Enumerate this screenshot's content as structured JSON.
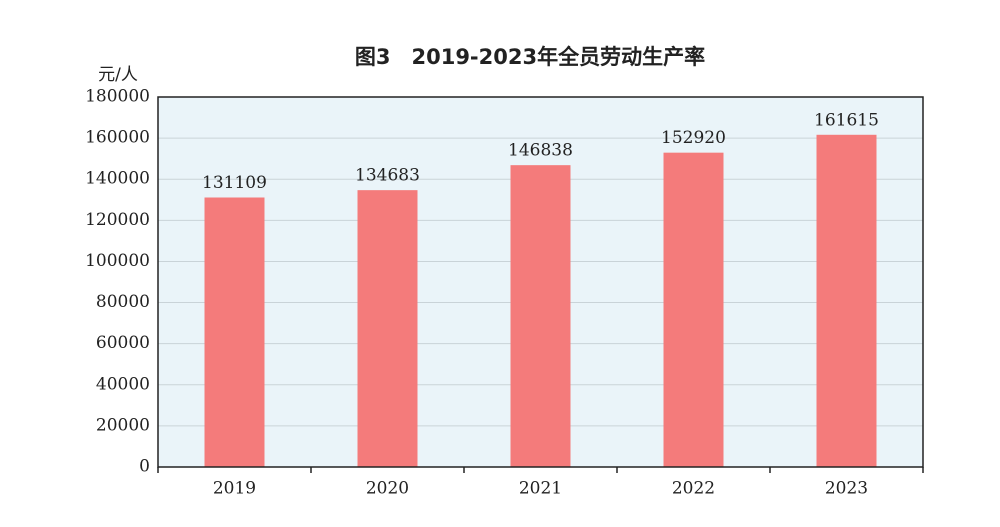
{
  "chart_data": {
    "type": "bar",
    "title": "图3　2019-2023年全员劳动生产率",
    "y_label": "元/人",
    "categories": [
      "2019",
      "2020",
      "2021",
      "2022",
      "2023"
    ],
    "values": [
      131109,
      134683,
      146838,
      152920,
      161615
    ],
    "color": "#f47b7b",
    "background": "#eaf4f9",
    "ylim": [
      0,
      180000
    ],
    "yticks": [
      0,
      20000,
      40000,
      60000,
      80000,
      100000,
      120000,
      140000,
      160000,
      180000
    ],
    "grid": true
  }
}
